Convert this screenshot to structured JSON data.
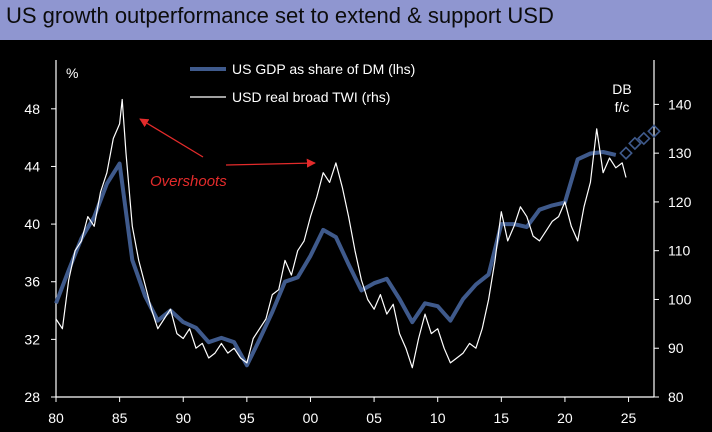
{
  "title": "US growth outperformance set to extend & support USD",
  "chart_data": {
    "type": "line",
    "x_range": [
      1980,
      2027
    ],
    "x_ticks": [
      1980,
      1985,
      1990,
      1995,
      2000,
      2005,
      2010,
      2015,
      2020,
      2025
    ],
    "x_tick_labels": [
      "80",
      "85",
      "90",
      "95",
      "00",
      "05",
      "10",
      "15",
      "20",
      "25"
    ],
    "y_left": {
      "unit_label": "%",
      "range": [
        28,
        50
      ],
      "ticks": [
        28,
        32,
        36,
        40,
        44,
        48
      ]
    },
    "y_right": {
      "range": [
        80,
        145
      ],
      "ticks": [
        80,
        90,
        100,
        110,
        120,
        130,
        140
      ]
    },
    "legend": {
      "position": "top-center"
    },
    "series": [
      {
        "name": "US GDP as share of DM (lhs)",
        "axis": "left",
        "color": "#3f5a8c",
        "x": [
          1980,
          1981,
          1982,
          1983,
          1984,
          1985,
          1986,
          1987,
          1988,
          1989,
          1990,
          1991,
          1992,
          1993,
          1994,
          1995,
          1996,
          1997,
          1998,
          1999,
          2000,
          2001,
          2002,
          2003,
          2004,
          2005,
          2006,
          2007,
          2008,
          2009,
          2010,
          2011,
          2012,
          2013,
          2014,
          2015,
          2016,
          2017,
          2018,
          2019,
          2020,
          2021,
          2022,
          2023,
          2024
        ],
        "values": [
          34.5,
          36.8,
          39.0,
          40.5,
          42.8,
          44.2,
          37.5,
          35.0,
          33.3,
          34.0,
          33.2,
          32.8,
          31.8,
          32.1,
          31.8,
          30.2,
          32.0,
          33.9,
          36.0,
          36.3,
          37.8,
          39.6,
          39.1,
          37.2,
          35.4,
          35.9,
          36.2,
          34.8,
          33.2,
          34.5,
          34.3,
          33.3,
          34.8,
          35.8,
          36.5,
          40.0,
          40.0,
          39.8,
          41.0,
          41.3,
          41.5,
          44.5,
          44.9,
          45.0,
          44.8
        ]
      },
      {
        "name": "USD real broad TWI (rhs)",
        "axis": "right",
        "color": "#ffffff",
        "x": [
          1980.0,
          1980.5,
          1981.0,
          1981.5,
          1982.0,
          1982.5,
          1983.0,
          1983.5,
          1984.0,
          1984.5,
          1985.0,
          1985.2,
          1985.5,
          1986.0,
          1986.5,
          1987.0,
          1987.5,
          1988.0,
          1988.5,
          1989.0,
          1989.5,
          1990.0,
          1990.5,
          1991.0,
          1991.5,
          1992.0,
          1992.5,
          1993.0,
          1993.5,
          1994.0,
          1994.5,
          1995.0,
          1995.5,
          1996.0,
          1996.5,
          1997.0,
          1997.5,
          1998.0,
          1998.5,
          1999.0,
          1999.5,
          2000.0,
          2000.5,
          2001.0,
          2001.5,
          2002.0,
          2002.5,
          2003.0,
          2003.5,
          2004.0,
          2004.5,
          2005.0,
          2005.5,
          2006.0,
          2006.5,
          2007.0,
          2007.5,
          2008.0,
          2008.5,
          2009.0,
          2009.5,
          2010.0,
          2010.5,
          2011.0,
          2011.5,
          2012.0,
          2012.5,
          2013.0,
          2013.5,
          2014.0,
          2014.5,
          2015.0,
          2015.5,
          2016.0,
          2016.5,
          2017.0,
          2017.5,
          2018.0,
          2018.5,
          2019.0,
          2019.5,
          2020.0,
          2020.5,
          2021.0,
          2021.5,
          2022.0,
          2022.5,
          2023.0,
          2023.5,
          2024.0,
          2024.5,
          2024.8
        ],
        "values": [
          96,
          94,
          104,
          110,
          112,
          117,
          115,
          122,
          126,
          133,
          136,
          141,
          130,
          115,
          108,
          103,
          98,
          94,
          96,
          98,
          93,
          92,
          94,
          90,
          91,
          88,
          89,
          91,
          89,
          90,
          88,
          87,
          92,
          94,
          96,
          101,
          102,
          108,
          105,
          110,
          112,
          117,
          121,
          126,
          124,
          128,
          123,
          117,
          110,
          104,
          100,
          98,
          101,
          97,
          99,
          93,
          90,
          86,
          92,
          97,
          93,
          94,
          90,
          87,
          88,
          89,
          91,
          90,
          94,
          100,
          108,
          118,
          112,
          115,
          119,
          117,
          113,
          112,
          114,
          116,
          117,
          120,
          115,
          112,
          119,
          124,
          135,
          126,
          129,
          127,
          128,
          125
        ]
      },
      {
        "name": "DB f/c",
        "axis": "right",
        "color": "#3f5a8c",
        "marker": "diamond",
        "x": [
          2024.8,
          2025.5,
          2026.2,
          2027.0
        ],
        "values": [
          130.0,
          132.0,
          133.0,
          134.5
        ]
      }
    ],
    "annotations": [
      {
        "text": "Overshoots",
        "color": "#e32b2b"
      },
      {
        "text": "DB\nf/c",
        "color": "#ffffff"
      }
    ]
  }
}
